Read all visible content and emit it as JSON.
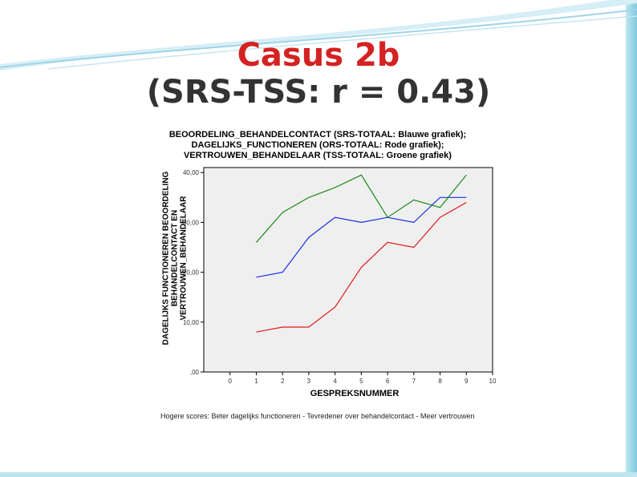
{
  "slide": {
    "title": "Casus 2b",
    "subtitle": "(SRS-TSS: r = 0.43)"
  },
  "colors": {
    "title": "#d42222",
    "subtitle": "#333333",
    "frame": "#7ec9df",
    "plot_background": "#efefef"
  },
  "chart_data": {
    "type": "line",
    "title_lines": [
      "BEOORDELING_BEHANDELCONTACT (SRS-TOTAAL: Blauwe grafiek);",
      "DAGELIJKS_FUNCTIONEREN (ORS-TOTAAL: Rode grafiek);",
      "VERTROUWEN_BEHANDELAAR (TSS-TOTAAL: Groene grafiek)"
    ],
    "ylabel_lines": [
      "DAGELIJKS FUNCTIONEREN BEOORDELING",
      "BEHANDELCONTACT EN",
      "VERTROUWEN_BEHANDELAAR"
    ],
    "xlabel": "GESPREKSNUMMER",
    "footnote": "Hogere scores: Beter dagelijks functioneren - Tevredener over behandelcontact - Meer vertrouwen",
    "xlim": [
      -1,
      10
    ],
    "ylim": [
      0,
      41
    ],
    "x_ticks": [
      0,
      1,
      2,
      3,
      4,
      5,
      6,
      7,
      8,
      9,
      10
    ],
    "x_tick_labels": [
      "0",
      "1",
      "2",
      "3",
      "4",
      "5",
      "6",
      "7",
      "8",
      "9",
      "10"
    ],
    "y_ticks": [
      0,
      10,
      20,
      30,
      40
    ],
    "y_tick_labels": [
      ",00",
      "10,00",
      "20,00",
      "30,00",
      "40,00"
    ],
    "grid": false,
    "x": [
      1,
      2,
      3,
      4,
      5,
      6,
      7,
      8,
      9
    ],
    "series": [
      {
        "color": "#1a2ee0",
        "values": [
          19,
          20,
          27,
          31,
          30,
          31,
          30,
          35,
          35
        ]
      },
      {
        "color": "#e01a1a",
        "values": [
          8,
          9,
          9,
          13,
          21,
          26,
          25,
          31,
          34
        ]
      },
      {
        "color": "#1a8a1a",
        "values": [
          26,
          32,
          35,
          37,
          39.5,
          31,
          34.5,
          33,
          39.5
        ]
      }
    ]
  }
}
